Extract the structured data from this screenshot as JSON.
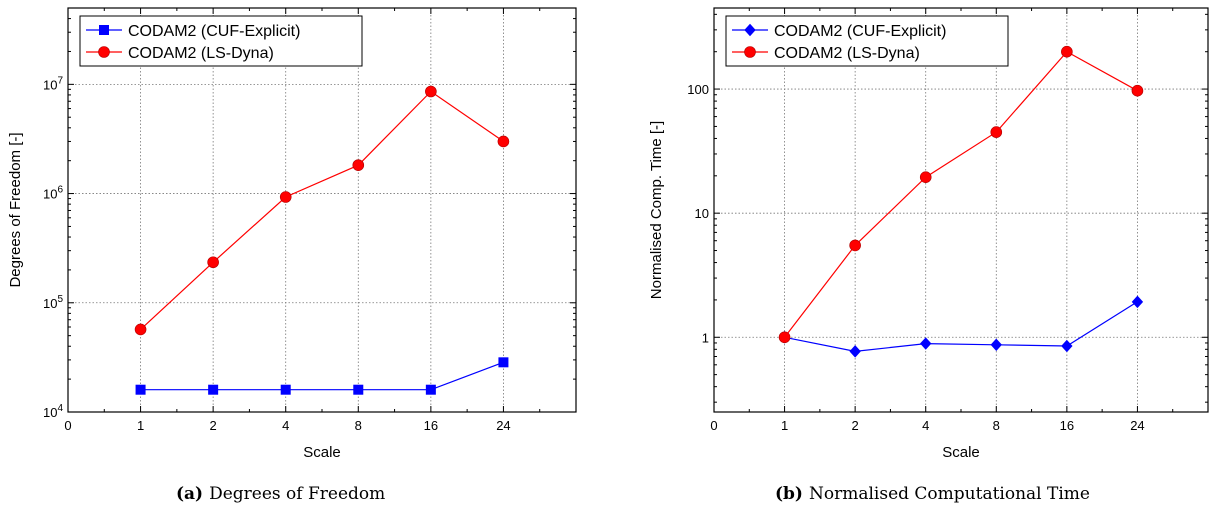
{
  "chart_data": [
    {
      "type": "line",
      "xlabel": "Scale",
      "ylabel": "Degrees of Freedom [-]",
      "categories": [
        "0",
        "1",
        "2",
        "4",
        "8",
        "16",
        "24"
      ],
      "x_positions": [
        0,
        1,
        2,
        3,
        4,
        5,
        6
      ],
      "xlim": [
        0,
        7
      ],
      "yscale": "log",
      "ylim": [
        10000,
        50000000
      ],
      "yticks": [
        10000,
        100000,
        1000000,
        10000000
      ],
      "ytick_labels": [
        {
          "base": "10",
          "exp": "4"
        },
        {
          "base": "10",
          "exp": "5"
        },
        {
          "base": "10",
          "exp": "6"
        },
        {
          "base": "10",
          "exp": "7"
        }
      ],
      "grid": true,
      "legend_position": "top-left",
      "series": [
        {
          "name": "CODAM2 (CUF-Explicit)",
          "color": "#0000ff",
          "marker": "square",
          "x": [
            1,
            2,
            3,
            4,
            5,
            6
          ],
          "values": [
            16000,
            16000,
            16000,
            16000,
            16000,
            28500
          ]
        },
        {
          "name": "CODAM2 (LS-Dyna)",
          "color": "#ff0000",
          "marker": "circle",
          "x": [
            1,
            2,
            3,
            4,
            5,
            6
          ],
          "values": [
            57000,
            235000,
            930000,
            1820000,
            8600000,
            3000000
          ]
        }
      ]
    },
    {
      "type": "line",
      "xlabel": "Scale",
      "ylabel": "Normalised Comp. Time [-]",
      "categories": [
        "0",
        "1",
        "2",
        "4",
        "8",
        "16",
        "24"
      ],
      "x_positions": [
        0,
        1,
        2,
        3,
        4,
        5,
        6
      ],
      "xlim": [
        0,
        7
      ],
      "yscale": "log",
      "ylim": [
        0.25,
        450
      ],
      "yticks": [
        1,
        10,
        100
      ],
      "ytick_labels": [
        {
          "base": "1",
          "exp": ""
        },
        {
          "base": "10",
          "exp": ""
        },
        {
          "base": "100",
          "exp": ""
        }
      ],
      "grid": true,
      "legend_position": "top-left",
      "series": [
        {
          "name": "CODAM2 (CUF-Explicit)",
          "color": "#0000ff",
          "marker": "diamond",
          "x": [
            1,
            2,
            3,
            4,
            5,
            6
          ],
          "values": [
            1.0,
            0.77,
            0.89,
            0.87,
            0.85,
            1.93
          ]
        },
        {
          "name": "CODAM2 (LS-Dyna)",
          "color": "#ff0000",
          "marker": "circle",
          "x": [
            1,
            2,
            3,
            4,
            5,
            6
          ],
          "values": [
            1.0,
            5.5,
            19.5,
            45,
            200,
            97
          ]
        }
      ]
    }
  ],
  "captions": [
    {
      "tag": "(a)",
      "text": "Degrees of Freedom"
    },
    {
      "tag": "(b)",
      "text": "Normalised Computational Time"
    }
  ]
}
